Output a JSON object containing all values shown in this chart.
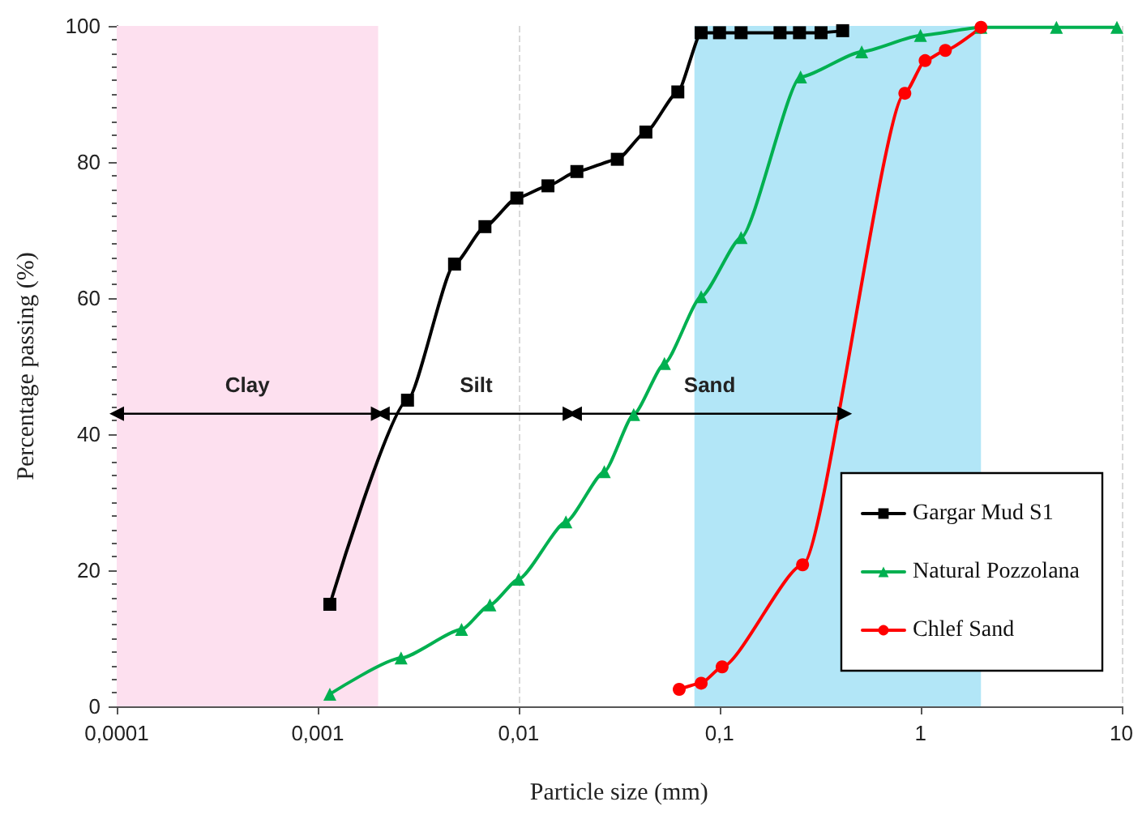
{
  "chart_data": {
    "type": "line",
    "xlabel": "Particle size (mm)",
    "ylabel": "Percentage passing (%)",
    "log": "x",
    "xlim": [
      0.0001,
      10
    ],
    "ylim": [
      0,
      100
    ],
    "xticks": [
      {
        "value": 0.0001,
        "label": "0,0001"
      },
      {
        "value": 0.001,
        "label": "0,001"
      },
      {
        "value": 0.01,
        "label": "0,01"
      },
      {
        "value": 0.1,
        "label": "0,1"
      },
      1,
      10
    ],
    "yticks": [
      0,
      20,
      40,
      60,
      80,
      100
    ],
    "grid": "x",
    "legend": "bottom right",
    "series": [
      {
        "name": "Gargar Mud S1",
        "color": "#000000",
        "marker": "square",
        "x": [
          0.00115,
          0.0028,
          0.0048,
          0.0068,
          0.0098,
          0.014,
          0.0195,
          0.031,
          0.043,
          0.062,
          0.081,
          0.1,
          0.128,
          0.2,
          0.25,
          0.32,
          0.41
        ],
        "values": [
          15,
          45,
          65,
          70.5,
          74.7,
          76.5,
          78.6,
          80.4,
          84.4,
          90.3,
          99,
          99,
          99,
          99,
          99,
          99,
          99.3
        ]
      },
      {
        "name": "Natural Pozzolana",
        "color": "#00b050",
        "marker": "triangle",
        "x": [
          0.00115,
          0.0026,
          0.0052,
          0.0072,
          0.01,
          0.0172,
          0.0267,
          0.0374,
          0.0532,
          0.081,
          0.128,
          0.253,
          0.51,
          1,
          2,
          4.75,
          9.5
        ],
        "values": [
          1.8,
          7.1,
          11.3,
          14.9,
          18.7,
          27.1,
          34.5,
          42.9,
          50.4,
          60.2,
          68.9,
          92.5,
          96.2,
          98.6,
          99.8,
          99.8,
          99.8
        ]
      },
      {
        "name": "Chlef Sand",
        "color": "#ff0000",
        "marker": "circle",
        "x": [
          0.063,
          0.081,
          0.103,
          0.259,
          0.836,
          1.055,
          1.33,
          2
        ],
        "values": [
          2.5,
          3.4,
          5.8,
          20.8,
          90.1,
          94.9,
          96.4,
          99.8
        ]
      },
      {
        "color": "#000000",
        "marker": "triangle",
        "x": [
          0.0001,
          0.002
        ],
        "values": [
          43,
          43
        ]
      },
      {
        "color": "#000000",
        "marker": "triangle",
        "x": [
          0.0021,
          0.018
        ],
        "values": [
          43,
          43
        ]
      },
      {
        "color": "#000000",
        "marker": "triangle",
        "x": [
          0.019,
          0.42
        ],
        "values": [
          43,
          43
        ]
      }
    ],
    "bands": [
      {
        "axis": "x",
        "from": 0.0001,
        "to": 0.002,
        "color": "#fde0ef"
      },
      {
        "axis": "x",
        "from": 0.075,
        "to": 2,
        "color": "#b2e6f7"
      }
    ],
    "annotations": [
      "Clay",
      "Silt",
      "Sand"
    ]
  }
}
